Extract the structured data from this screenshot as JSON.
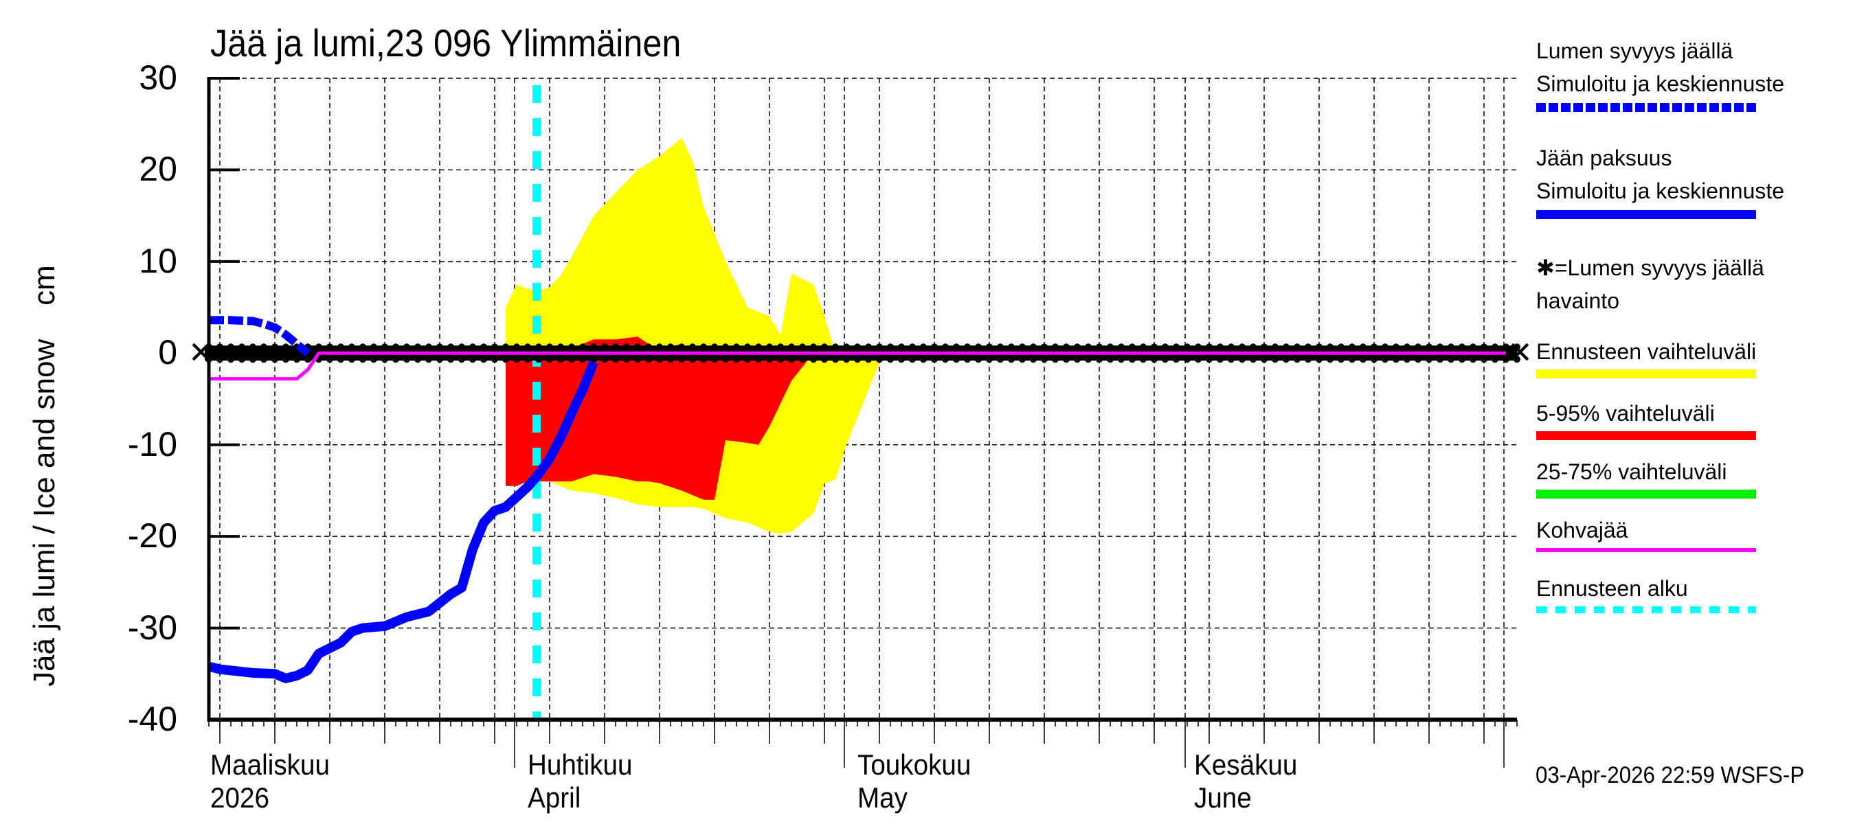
{
  "title": "Jää ja lumi,23 096 Ylimmäinen",
  "y_axis_label": "Jää ja lumi / Ice and snow    cm",
  "y_ticks": [
    "30",
    "20",
    "10",
    "0",
    "-10",
    "-20",
    "-30",
    "-40"
  ],
  "x_months": [
    {
      "fi": "Maaliskuu",
      "en": "2026"
    },
    {
      "fi": "Huhtikuu",
      "en": "April"
    },
    {
      "fi": "Toukokuu",
      "en": "May"
    },
    {
      "fi": "Kesäkuu",
      "en": "June"
    }
  ],
  "legend": [
    {
      "line1": "Lumen syvyys jäällä",
      "line2": "Simuloitu ja keskiennuste",
      "color": "#0000ff",
      "style": "dashed-thick"
    },
    {
      "line1": "Jään paksuus",
      "line2": "Simuloitu ja keskiennuste",
      "color": "#0000ff",
      "style": "solid-thick"
    },
    {
      "line1": "✱=Lumen syvyys jäällä",
      "line2": "havainto",
      "color": "#000000",
      "style": "marker"
    },
    {
      "line1": "Ennusteen vaihteluväli",
      "color": "#ffff00",
      "style": "band"
    },
    {
      "line1": "5-95% vaihteluväli",
      "color": "#ff0000",
      "style": "band"
    },
    {
      "line1": "25-75% vaihteluväli",
      "color": "#00ee00",
      "style": "band"
    },
    {
      "line1": "Kohvajää",
      "color": "#ff00ff",
      "style": "solid-thin"
    },
    {
      "line1": "Ennusteen alku",
      "color": "#00ffff",
      "style": "dashed"
    }
  ],
  "timestamp": "03-Apr-2026 22:59 WSFS-P",
  "colors": {
    "ice": "#0000ff",
    "snow": "#0000ff",
    "range_full": "#ffff00",
    "range_5_95": "#ff0000",
    "range_25_75": "#00ee00",
    "slush_ice": "#ff00ff",
    "forecast_start": "#00ffff",
    "observed": "#000000"
  },
  "chart_data": {
    "type": "line",
    "title": "Jää ja lumi,23 096 Ylimmäinen",
    "xlabel": "",
    "ylabel": "Jää ja lumi / Ice and snow cm",
    "ylim": [
      -40,
      30
    ],
    "yticks": [
      30,
      20,
      10,
      0,
      -10,
      -20,
      -30,
      -40
    ],
    "xlim": [
      "2026-03-04",
      "2026-06-30"
    ],
    "x_month_labels": [
      "Maaliskuu 2026",
      "Huhtikuu April",
      "Toukokuu May",
      "Kesäkuu June"
    ],
    "grid": true,
    "legend_position": "right",
    "forecast_start": "2026-04-03",
    "series": [
      {
        "name": "Jään paksuus, Simuloitu ja keskiennuste",
        "style": "solid-thick",
        "x": [
          "03-04",
          "03-05",
          "03-08",
          "03-10",
          "03-11",
          "03-12",
          "03-13",
          "03-14",
          "03-16",
          "03-17",
          "03-18",
          "03-20",
          "03-21",
          "03-22",
          "03-24",
          "03-26",
          "03-27",
          "03-28",
          "03-29",
          "03-30",
          "03-31",
          "04-01",
          "04-02",
          "04-03",
          "04-04",
          "04-05",
          "04-06",
          "04-07",
          "04-08"
        ],
        "values": [
          -34.2,
          -34.5,
          -34.9,
          -35.0,
          -35.5,
          -35.2,
          -34.6,
          -32.8,
          -31.6,
          -30.4,
          -30.0,
          -29.8,
          -29.3,
          -28.8,
          -28.2,
          -26.3,
          -25.6,
          -21.4,
          -18.5,
          -17.2,
          -16.8,
          -15.7,
          -14.6,
          -13.2,
          -11.5,
          -9.2,
          -6.5,
          -4.0,
          -1.0
        ]
      },
      {
        "name": "Lumen syvyys jäällä, Simuloitu ja keskiennuste",
        "style": "dashed-thick",
        "x": [
          "03-04",
          "03-06",
          "03-08",
          "03-09",
          "03-10",
          "03-11",
          "03-12",
          "03-13"
        ],
        "values": [
          3.6,
          3.6,
          3.5,
          3.2,
          2.8,
          2.0,
          1.0,
          0.0
        ]
      },
      {
        "name": "Kohvajää",
        "style": "solid-thin",
        "x": [
          "03-04",
          "03-12",
          "03-13",
          "03-14",
          "06-30"
        ],
        "values": [
          -2.8,
          -2.8,
          -1.8,
          0.0,
          0.0
        ]
      },
      {
        "name": "Lumen syvyys jäällä havainto",
        "style": "markers",
        "x_range": [
          "03-04",
          "06-30"
        ],
        "values_constant": 0
      }
    ],
    "bands": [
      {
        "name": "Ennusteen vaihteluväli",
        "x": [
          "03-31",
          "04-01",
          "04-02",
          "04-03",
          "04-04",
          "04-05",
          "04-06",
          "04-08",
          "04-10",
          "04-12",
          "04-14",
          "04-16",
          "04-17",
          "04-18",
          "04-20",
          "04-22",
          "04-24",
          "04-25",
          "04-26",
          "04-28",
          "04-29",
          "04-30",
          "05-01",
          "05-02",
          "05-03",
          "05-04",
          "05-05"
        ],
        "upper": [
          5,
          7.5,
          7,
          6.8,
          7.2,
          8.5,
          10.5,
          15,
          17.5,
          20,
          21.5,
          23.5,
          21,
          16,
          10,
          5,
          4,
          2,
          8.7,
          7.5,
          4,
          0,
          0,
          0,
          0,
          0,
          0
        ],
        "lower": [
          -14.5,
          -14.5,
          -14,
          -14,
          -14,
          -14.5,
          -15,
          -15.3,
          -15.8,
          -16.5,
          -16.8,
          -16.8,
          -16.8,
          -17,
          -18,
          -18.5,
          -19.5,
          -19.7,
          -19.5,
          -17.5,
          -14.2,
          -13.8,
          -10,
          -7,
          -4,
          -1,
          0
        ]
      },
      {
        "name": "5-95% vaihteluväli",
        "x": [
          "03-31",
          "04-01",
          "04-02",
          "04-04",
          "04-06",
          "04-08",
          "04-10",
          "04-12",
          "04-13",
          "04-14",
          "04-16",
          "04-18",
          "04-19",
          "04-20",
          "04-22",
          "04-23",
          "04-24",
          "04-26",
          "04-28"
        ],
        "upper": [
          1,
          0,
          0,
          0,
          0.5,
          1.5,
          1.5,
          1.8,
          1,
          0.5,
          1,
          0,
          0,
          0,
          0,
          0,
          0,
          0,
          0
        ],
        "lower": [
          -14.5,
          -14.5,
          -14,
          -14,
          -14,
          -13.2,
          -13.5,
          -14,
          -14,
          -14.2,
          -15,
          -16,
          -16,
          -9.5,
          -9.8,
          -10,
          -8,
          -3,
          0
        ]
      },
      {
        "name": "25-75% vaihteluväli",
        "note": "essentially not visible (near 0)",
        "x": [],
        "upper": [],
        "lower": []
      }
    ]
  }
}
